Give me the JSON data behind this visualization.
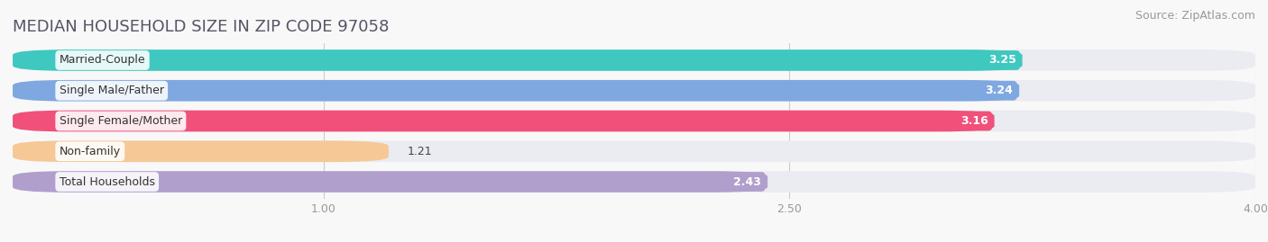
{
  "title": "MEDIAN HOUSEHOLD SIZE IN ZIP CODE 97058",
  "source": "Source: ZipAtlas.com",
  "categories": [
    "Married-Couple",
    "Single Male/Father",
    "Single Female/Mother",
    "Non-family",
    "Total Households"
  ],
  "values": [
    3.25,
    3.24,
    3.16,
    1.21,
    2.43
  ],
  "bar_colors": [
    "#3ec8c0",
    "#7fa8e0",
    "#f0507a",
    "#f5c896",
    "#b09fcc"
  ],
  "bar_bg_color": "#ebebf2",
  "xlim_min": 0.0,
  "xlim_max": 4.0,
  "xticks": [
    1.0,
    2.5,
    4.0
  ],
  "xtick_labels": [
    "1.00",
    "2.50",
    "4.00"
  ],
  "title_fontsize": 13,
  "source_fontsize": 9,
  "label_fontsize": 9,
  "value_fontsize": 9,
  "background_color": "#f8f8f8"
}
